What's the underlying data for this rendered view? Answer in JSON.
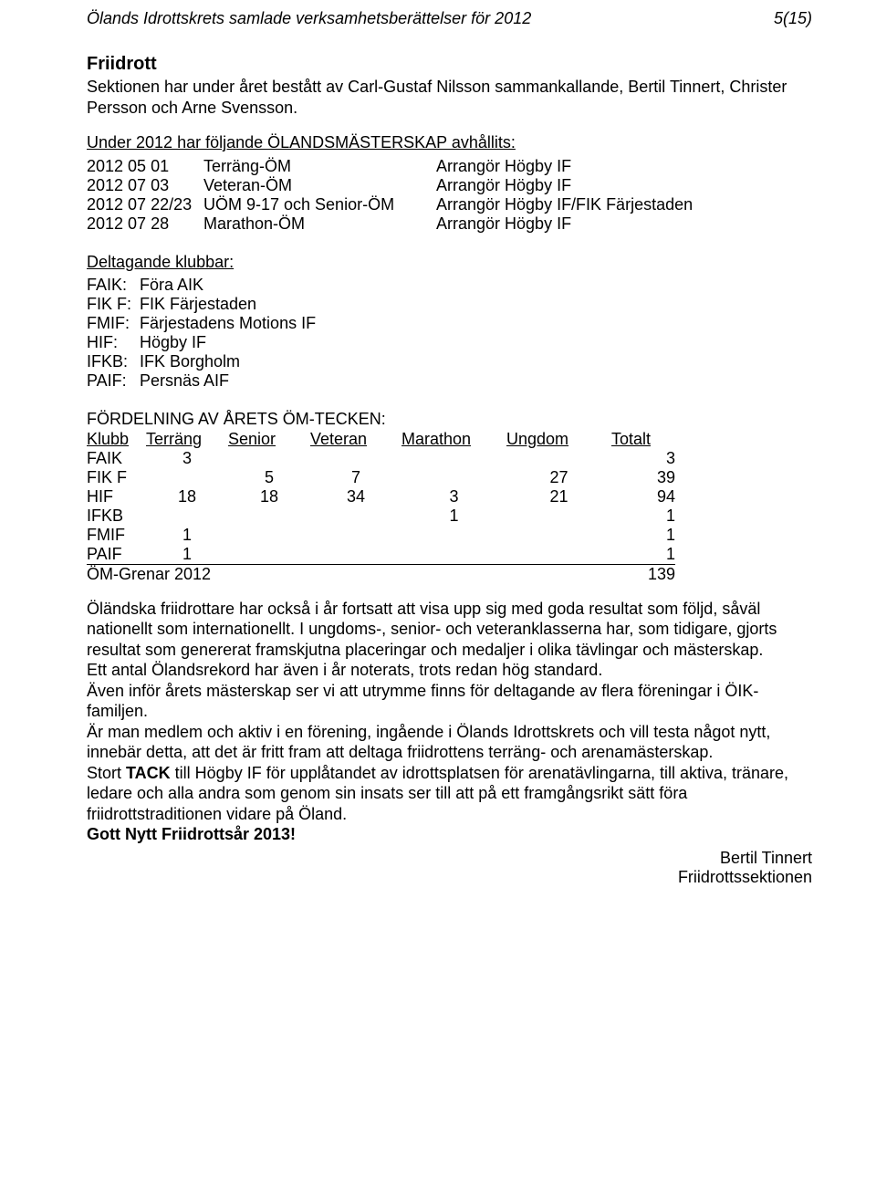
{
  "header": {
    "left": "Ölands Idrottskrets samlade verksamhetsberättelser för 2012",
    "right": "5(15)"
  },
  "section_title": "Friidrott",
  "intro": "Sektionen har under året bestått av  Carl-Gustaf Nilsson sammankallande, Bertil  Tinnert, Christer Persson och Arne Svensson.",
  "masterskap_heading": "Under 2012 har följande ÖLANDSMÄSTERSKAP avhållits:",
  "events": {
    "rows": [
      {
        "date": "2012 05 01",
        "event": "Terräng-ÖM",
        "org": "Arrangör Högby IF"
      },
      {
        "date": "2012 07 03",
        "event": "Veteran-ÖM",
        "org": "Arrangör Högby IF"
      },
      {
        "date": "2012 07 22/23",
        "event": "UÖM  9-17 och Senior-ÖM",
        "org": "Arrangör Högby IF/FIK Färjestaden"
      },
      {
        "date": "2012 07 28",
        "event": "Marathon-ÖM",
        "org": "Arrangör Högby IF"
      }
    ]
  },
  "clubs_heading": "Deltagande klubbar:",
  "clubs": {
    "rows": [
      {
        "abbr": "FAIK:",
        "name": "Föra AIK"
      },
      {
        "abbr": "FIK F:",
        "name": "FIK Färjestaden"
      },
      {
        "abbr": "FMIF:",
        "name": "Färjestadens Motions IF"
      },
      {
        "abbr": "HIF:",
        "name": "Högby IF"
      },
      {
        "abbr": "IFKB:",
        "name": "IFK Borgholm"
      },
      {
        "abbr": "PAIF:",
        "name": "Persnäs AIF"
      }
    ]
  },
  "om_heading": "FÖRDELNING AV ÅRETS ÖM-TECKEN:",
  "om_table": {
    "columns": [
      "Klubb",
      "Terräng",
      "Senior",
      "Veteran",
      "Marathon",
      "Ungdom",
      "Totalt"
    ],
    "rows": [
      {
        "klubb": "FAIK",
        "terrang": "3",
        "senior": "",
        "veteran": "",
        "marathon": "",
        "ungdom": "",
        "totalt": "3"
      },
      {
        "klubb": "FIK F",
        "terrang": "",
        "senior": "5",
        "veteran": "7",
        "marathon": "",
        "ungdom": "27",
        "totalt": "39"
      },
      {
        "klubb": "HIF",
        "terrang": "18",
        "senior": "18",
        "veteran": "34",
        "marathon": "3",
        "ungdom": "21",
        "totalt": "94"
      },
      {
        "klubb": "IFKB",
        "terrang": "",
        "senior": "",
        "veteran": "",
        "marathon": "1",
        "ungdom": "",
        "totalt": "1"
      },
      {
        "klubb": "FMIF",
        "terrang": "1",
        "senior": "",
        "veteran": "",
        "marathon": "",
        "ungdom": "",
        "totalt": "1"
      },
      {
        "klubb": "PAIF",
        "terrang": "1",
        "senior": "",
        "veteran": "",
        "marathon": "",
        "ungdom": "",
        "totalt": "1"
      }
    ],
    "summary_label": "ÖM-Grenar 2012",
    "summary_total": "139"
  },
  "paragraphs": {
    "p1": "Öländska friidrottare har också i år fortsatt att visa upp sig med goda resultat som följd, såväl nationellt som internationellt. I ungdoms-, senior- och veteranklasserna har, som tidigare, gjorts resultat som genererat framskjutna placeringar och medaljer i olika tävlingar och mästerskap.",
    "p2": "Ett antal Ölandsrekord har även i år noterats, trots redan hög standard.",
    "p3": "Även inför årets mästerskap ser vi att utrymme finns för deltagande av flera föreningar i ÖIK-familjen.",
    "p4": "Är man medlem och aktiv i en förening, ingående i Ölands Idrottskrets och vill testa något nytt, innebär detta, att det är fritt fram att deltaga friidrottens terräng- och arenamästerskap.",
    "p5a": "Stort ",
    "p5b": "TACK",
    "p5c": " till Högby IF för upplåtandet av idrottsplatsen för arenatävlingarna, till aktiva, tränare, ledare och alla andra som genom sin insats ser till att på ett framgångsrikt sätt föra friidrottstraditionen vidare på Öland.",
    "p6": "Gott Nytt Friidrottsår 2013!"
  },
  "footer": {
    "name": "Bertil Tinnert",
    "section": "Friidrottssektionen"
  }
}
